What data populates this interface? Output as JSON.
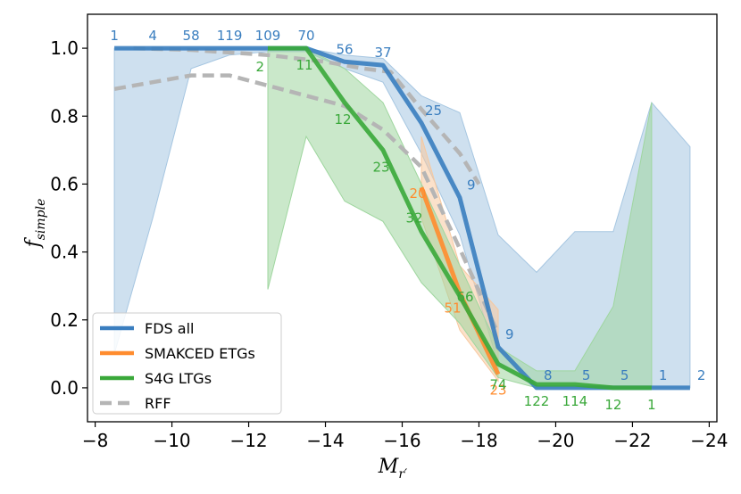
{
  "chart_data": {
    "type": "line",
    "xlabel": "M",
    "xlabel_sub": "r′",
    "ylabel": "f",
    "ylabel_sub": "simple",
    "xlim": [
      -7.8,
      -24.2
    ],
    "ylim": [
      -0.1,
      1.1
    ],
    "x_inverted": true,
    "xticks": [
      -8,
      -10,
      -12,
      -14,
      -16,
      -18,
      -20,
      -22,
      -24
    ],
    "xtick_labels": [
      "−8",
      "−10",
      "−12",
      "−14",
      "−16",
      "−18",
      "−20",
      "−22",
      "−24"
    ],
    "yticks": [
      0.0,
      0.2,
      0.4,
      0.6,
      0.8,
      1.0
    ],
    "ytick_labels": [
      "0.0",
      "0.2",
      "0.4",
      "0.6",
      "0.8",
      "1.0"
    ],
    "grid": false,
    "legend_position": "lower-left",
    "series": [
      {
        "name": "FDS all",
        "color": "#3a7ebf",
        "dash": "solid",
        "band_color": "#a6c6e1",
        "x": [
          -8.5,
          -9.5,
          -10.5,
          -11.5,
          -12.5,
          -13.5,
          -14.5,
          -15.5,
          -16.5,
          -17.5,
          -18.5,
          -19.5,
          -20.5,
          -21.5,
          -22.5,
          -23.5
        ],
        "y": [
          1.0,
          1.0,
          1.0,
          1.0,
          1.0,
          1.0,
          0.96,
          0.95,
          0.78,
          0.56,
          0.12,
          0.0,
          0.0,
          0.0,
          0.0,
          0.0
        ],
        "band_lower": [
          0.1,
          0.5,
          0.94,
          0.98,
          0.99,
          0.99,
          0.94,
          0.9,
          0.69,
          0.45,
          0.07,
          0.0,
          0.0,
          0.0,
          0.0,
          0.0
        ],
        "band_upper": [
          1.0,
          1.0,
          1.0,
          1.0,
          1.0,
          1.0,
          0.98,
          0.97,
          0.86,
          0.81,
          0.45,
          0.34,
          0.46,
          0.46,
          0.84,
          0.71
        ],
        "count_labels": [
          "1",
          "4",
          "58",
          "119",
          "109",
          "70",
          "56",
          "37",
          "25",
          "9",
          "9",
          "8",
          "5",
          "5",
          "1",
          "2"
        ]
      },
      {
        "name": "SMAKCED ETGs",
        "color": "#ff8c2e",
        "dash": "solid",
        "band_color": "#f7c89e",
        "x": [
          -16.5,
          -17.5,
          -18.5
        ],
        "y": [
          0.59,
          0.28,
          0.04
        ],
        "band_lower": [
          0.5,
          0.17,
          0.02
        ],
        "band_upper": [
          0.74,
          0.36,
          0.23
        ],
        "count_labels": [
          "20",
          "51",
          "23"
        ]
      },
      {
        "name": "S4G LTGs",
        "color": "#3aa83a",
        "dash": "solid",
        "band_color": "#9fd69f",
        "x": [
          -12.5,
          -13.5,
          -14.5,
          -15.5,
          -16.5,
          -17.5,
          -18.5,
          -19.5,
          -20.5,
          -21.5,
          -22.5
        ],
        "y": [
          1.0,
          1.0,
          0.84,
          0.7,
          0.46,
          0.27,
          0.07,
          0.01,
          0.01,
          0.0,
          0.0
        ],
        "band_lower": [
          0.29,
          0.74,
          0.55,
          0.49,
          0.31,
          0.19,
          0.03,
          0.0,
          0.0,
          0.0,
          0.0
        ],
        "band_upper": [
          1.0,
          1.0,
          0.94,
          0.84,
          0.6,
          0.36,
          0.12,
          0.05,
          0.05,
          0.24,
          0.84
        ],
        "count_labels": [
          "2",
          "11",
          "12",
          "23",
          "32",
          "66",
          "74",
          "122",
          "114",
          "12",
          "1"
        ]
      },
      {
        "name": "RFF",
        "color": "#b5b5b5",
        "dash": "dashed",
        "x": [
          -8.5,
          -9.5,
          -10.5,
          -11.5,
          -12.5,
          -13.5,
          -14.5,
          -15.5,
          -16.5,
          -17.5,
          -18.5
        ],
        "y": [
          0.88,
          0.9,
          0.92,
          0.92,
          0.89,
          0.86,
          0.83,
          0.76,
          0.65,
          0.41,
          0.16
        ]
      },
      {
        "name": "",
        "color": "#b5b5b5",
        "dash": "dashed",
        "x": [
          -9.0,
          -10.5,
          -12.5,
          -14.0,
          -15.0,
          -15.7,
          -16.5,
          -17.5,
          -18.0
        ],
        "y": [
          1.0,
          0.995,
          0.98,
          0.96,
          0.94,
          0.93,
          0.82,
          0.69,
          0.6
        ]
      }
    ]
  }
}
